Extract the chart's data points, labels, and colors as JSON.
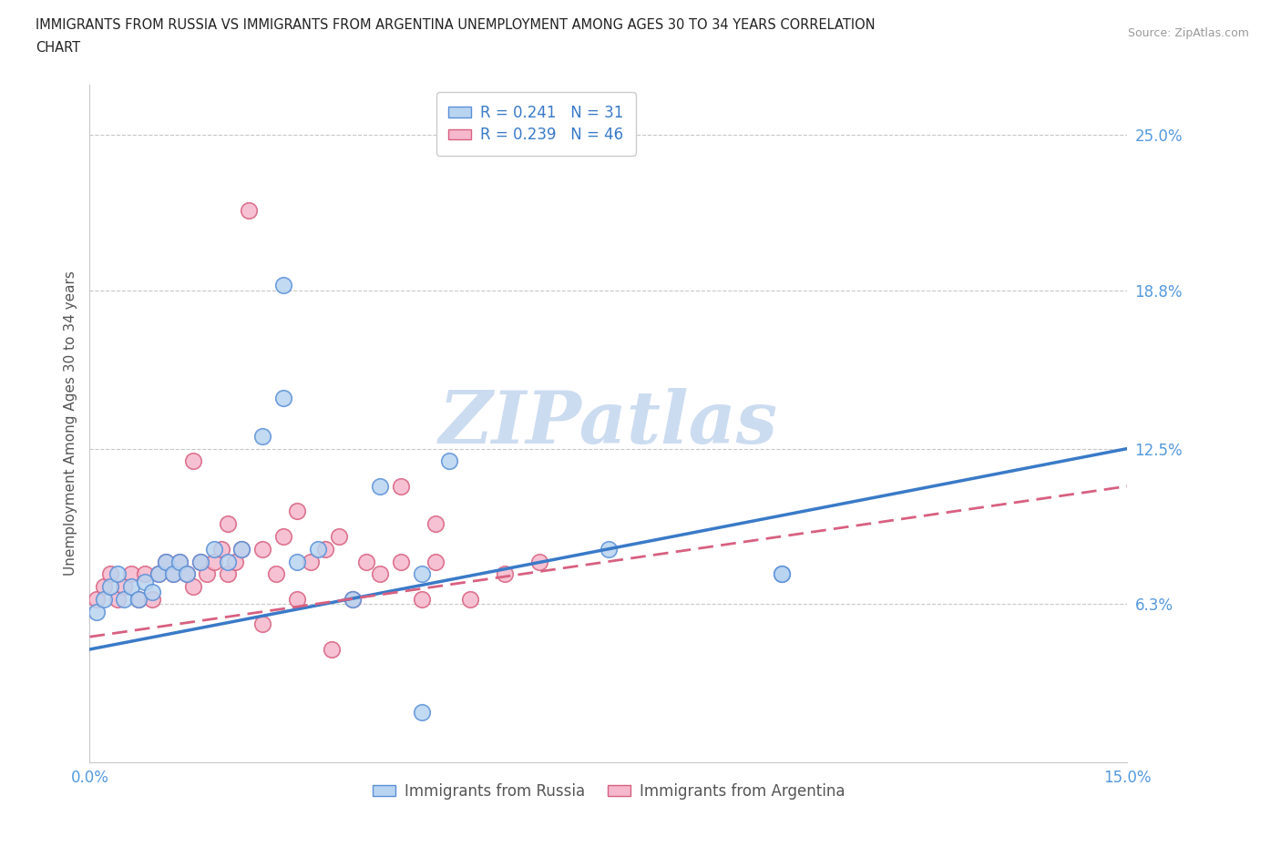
{
  "title_line1": "IMMIGRANTS FROM RUSSIA VS IMMIGRANTS FROM ARGENTINA UNEMPLOYMENT AMONG AGES 30 TO 34 YEARS CORRELATION",
  "title_line2": "CHART",
  "source": "Source: ZipAtlas.com",
  "ylabel": "Unemployment Among Ages 30 to 34 years",
  "xlim": [
    0.0,
    0.15
  ],
  "ylim": [
    0.0,
    0.27
  ],
  "yticks": [
    0.0,
    0.063,
    0.125,
    0.188,
    0.25
  ],
  "ytick_labels": [
    "",
    "6.3%",
    "12.5%",
    "18.8%",
    "25.0%"
  ],
  "xticks": [
    0.0,
    0.05,
    0.1,
    0.15
  ],
  "xtick_labels": [
    "0.0%",
    "",
    "",
    "15.0%"
  ],
  "russia_R": 0.241,
  "russia_N": 31,
  "argentina_R": 0.239,
  "argentina_N": 46,
  "russia_color": "#b8d4f0",
  "argentina_color": "#f5b8cc",
  "russia_edge_color": "#5a90d8",
  "argentina_edge_color": "#d86080",
  "russia_line_color": "#3a7ac8",
  "argentina_line_color": "#d86080",
  "grid_color": "#c8c8c8",
  "watermark_color": "#ccdcf0",
  "title_color": "#222222",
  "axis_tick_color": "#5599dd",
  "legend_text_color": "#3a7ac8",
  "russia_x": [
    0.001,
    0.002,
    0.003,
    0.004,
    0.005,
    0.006,
    0.007,
    0.008,
    0.009,
    0.01,
    0.011,
    0.012,
    0.013,
    0.014,
    0.016,
    0.018,
    0.02,
    0.022,
    0.025,
    0.028,
    0.03,
    0.033,
    0.038,
    0.042,
    0.048,
    0.052,
    0.028,
    0.075,
    0.1,
    0.1,
    0.048
  ],
  "russia_y": [
    0.06,
    0.065,
    0.07,
    0.075,
    0.065,
    0.07,
    0.065,
    0.072,
    0.068,
    0.075,
    0.08,
    0.075,
    0.08,
    0.075,
    0.08,
    0.085,
    0.08,
    0.085,
    0.13,
    0.19,
    0.08,
    0.085,
    0.065,
    0.11,
    0.075,
    0.12,
    0.145,
    0.085,
    0.075,
    0.075,
    0.02
  ],
  "argentina_x": [
    0.001,
    0.002,
    0.003,
    0.004,
    0.005,
    0.006,
    0.007,
    0.008,
    0.009,
    0.01,
    0.011,
    0.012,
    0.013,
    0.014,
    0.015,
    0.016,
    0.017,
    0.018,
    0.019,
    0.02,
    0.021,
    0.022,
    0.023,
    0.025,
    0.027,
    0.028,
    0.03,
    0.032,
    0.034,
    0.036,
    0.038,
    0.04,
    0.042,
    0.045,
    0.048,
    0.05,
    0.055,
    0.03,
    0.06,
    0.065,
    0.045,
    0.05,
    0.015,
    0.02,
    0.025,
    0.035
  ],
  "argentina_y": [
    0.065,
    0.07,
    0.075,
    0.065,
    0.07,
    0.075,
    0.065,
    0.075,
    0.065,
    0.075,
    0.08,
    0.075,
    0.08,
    0.075,
    0.07,
    0.08,
    0.075,
    0.08,
    0.085,
    0.075,
    0.08,
    0.085,
    0.22,
    0.085,
    0.075,
    0.09,
    0.065,
    0.08,
    0.085,
    0.09,
    0.065,
    0.08,
    0.075,
    0.08,
    0.065,
    0.08,
    0.065,
    0.1,
    0.075,
    0.08,
    0.11,
    0.095,
    0.12,
    0.095,
    0.055,
    0.045
  ]
}
